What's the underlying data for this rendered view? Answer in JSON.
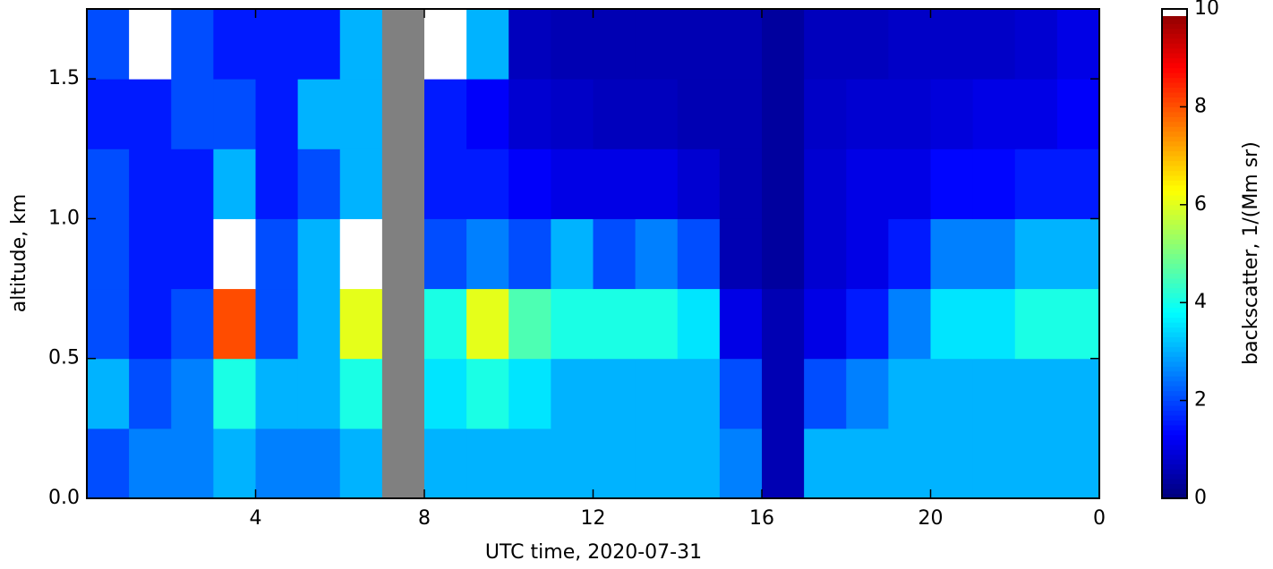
{
  "chart_data": {
    "type": "heatmap",
    "x_label": "UTC time,  2020-07-31",
    "y_label": "altitude, km",
    "colorbar_label": "backscatter, 1/(Mm sr)",
    "x": [
      0,
      1,
      2,
      3,
      4,
      5,
      6,
      7,
      8,
      9,
      10,
      11,
      12,
      13,
      14,
      15,
      16,
      17,
      18,
      19,
      20,
      21,
      22,
      23,
      24
    ],
    "y": [
      0,
      0.25,
      0.5,
      0.75,
      1,
      1.25,
      1.5,
      1.75
    ],
    "z": [
      [
        2,
        2.5,
        2.5,
        3,
        2.5,
        2.5,
        3,
        null,
        3,
        3,
        3,
        3,
        3,
        3,
        3,
        2.5,
        0.5,
        3,
        3,
        3,
        3,
        3,
        3,
        3
      ],
      [
        3,
        2,
        2.5,
        4,
        3,
        3,
        4,
        null,
        3.5,
        4,
        3.5,
        3,
        3,
        3,
        3,
        2,
        0.5,
        2,
        2.5,
        3,
        3,
        3,
        3,
        3
      ],
      [
        2,
        1.5,
        2,
        8,
        2,
        3,
        6,
        null,
        4,
        6,
        4.5,
        4,
        4,
        4,
        3.5,
        1,
        0.5,
        1,
        1.5,
        2.5,
        3.5,
        3.5,
        4,
        4
      ],
      [
        2,
        1.5,
        1.5,
        10.5,
        2,
        3,
        11,
        null,
        2,
        2.5,
        2,
        3,
        2,
        2.5,
        2,
        0.5,
        0.3,
        0.8,
        1,
        1.5,
        2.5,
        2.5,
        3,
        3
      ],
      [
        2,
        1.5,
        1.5,
        3,
        1.5,
        2,
        3,
        null,
        1.5,
        1.5,
        1.2,
        1,
        1,
        1,
        0.8,
        0.5,
        0.3,
        0.8,
        1,
        1,
        1.3,
        1.3,
        1.5,
        1.5
      ],
      [
        1.5,
        1.5,
        2,
        2,
        1.5,
        3,
        3,
        null,
        1.5,
        1.2,
        0.8,
        0.7,
        0.6,
        0.6,
        0.5,
        0.5,
        0.3,
        0.7,
        0.8,
        0.8,
        0.9,
        1,
        1,
        1.2
      ],
      [
        2,
        11,
        2,
        1.5,
        1.5,
        1.5,
        3,
        null,
        11,
        3,
        0.6,
        0.5,
        0.5,
        0.5,
        0.5,
        0.5,
        0.3,
        0.6,
        0.6,
        0.7,
        0.7,
        0.7,
        0.8,
        1
      ]
    ],
    "xlim": [
      0,
      24
    ],
    "xticks": [
      4,
      8,
      12,
      16,
      20,
      {
        "value": 24,
        "label": "0"
      }
    ],
    "ylim": [
      0,
      1.75
    ],
    "yticks": [
      {
        "value": 0,
        "label": "0.0"
      },
      0.5,
      {
        "value": 1,
        "label": "1.0"
      },
      1.5
    ],
    "zlim": [
      0,
      10
    ],
    "zticks": [
      0,
      2,
      4,
      6,
      8,
      10
    ],
    "colormap": "jet"
  }
}
